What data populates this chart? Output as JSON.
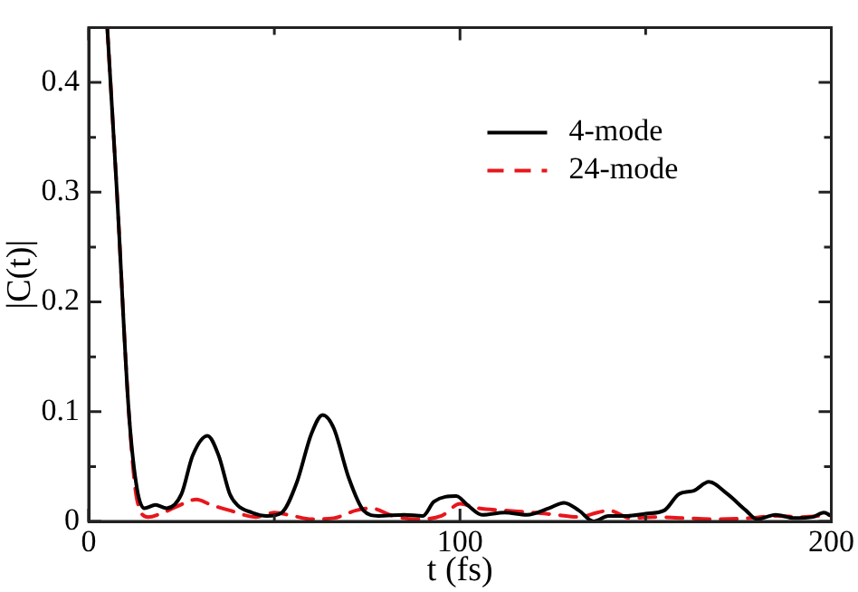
{
  "chart_data": {
    "type": "line",
    "xlabel": "t (fs)",
    "ylabel": "|C(t)|",
    "xlim": [
      0,
      200
    ],
    "ylim": [
      0,
      0.45
    ],
    "xticks": [
      0,
      {
        "value": 50,
        "label": null
      },
      100,
      {
        "value": 150,
        "label": null
      },
      200
    ],
    "yticks": [
      0,
      {
        "value": 0.05,
        "label": null
      },
      0.1,
      {
        "value": 0.15,
        "label": null
      },
      0.2,
      {
        "value": 0.25,
        "label": null
      },
      0.3,
      {
        "value": 0.35,
        "label": null
      },
      0.4
    ],
    "grid": false,
    "legend": "top right",
    "marker": "none",
    "series": [
      {
        "name": "4-mode",
        "color": "#000000",
        "line_style": "solid",
        "x": [
          5,
          7.6,
          10.8,
          13,
          15,
          18,
          21,
          25,
          28,
          32,
          35,
          38,
          40,
          44,
          48,
          52,
          56,
          60,
          63,
          66,
          70,
          74,
          78,
          85,
          90,
          93,
          99,
          102,
          106,
          112,
          118,
          124,
          128,
          132,
          136,
          140,
          145,
          150,
          155,
          159,
          163,
          167,
          172,
          177,
          180,
          185,
          190,
          195,
          198,
          200
        ],
        "values": [
          0.45,
          0.3,
          0.1,
          0.03,
          0.012,
          0.015,
          0.012,
          0.025,
          0.06,
          0.078,
          0.06,
          0.025,
          0.015,
          0.008,
          0.005,
          0.008,
          0.035,
          0.08,
          0.097,
          0.085,
          0.04,
          0.01,
          0.005,
          0.006,
          0.005,
          0.018,
          0.023,
          0.015,
          0.006,
          0.008,
          0.006,
          0.012,
          0.017,
          0.01,
          0.0,
          0.005,
          0.005,
          0.007,
          0.01,
          0.025,
          0.028,
          0.036,
          0.025,
          0.01,
          0.002,
          0.006,
          0.003,
          0.004,
          0.008,
          0.005
        ]
      },
      {
        "name": "24-mode",
        "color": "#e8161b",
        "line_style": "dashed",
        "x": [
          5,
          7.6,
          10.8,
          13,
          16,
          20,
          24,
          29,
          33,
          38,
          45,
          50,
          55,
          60,
          66,
          72,
          76,
          82,
          88,
          95,
          100,
          105,
          112,
          120,
          126,
          132,
          137,
          140,
          146,
          152,
          160,
          170,
          178,
          185,
          192,
          200
        ],
        "values": [
          0.45,
          0.3,
          0.1,
          0.02,
          0.004,
          0.008,
          0.014,
          0.02,
          0.015,
          0.01,
          0.004,
          0.008,
          0.005,
          0.002,
          0.003,
          0.01,
          0.012,
          0.005,
          0.002,
          0.005,
          0.016,
          0.012,
          0.01,
          0.008,
          0.006,
          0.004,
          0.008,
          0.01,
          0.003,
          0.004,
          0.003,
          0.002,
          0.003,
          0.005,
          0.004,
          0.006
        ]
      }
    ]
  }
}
